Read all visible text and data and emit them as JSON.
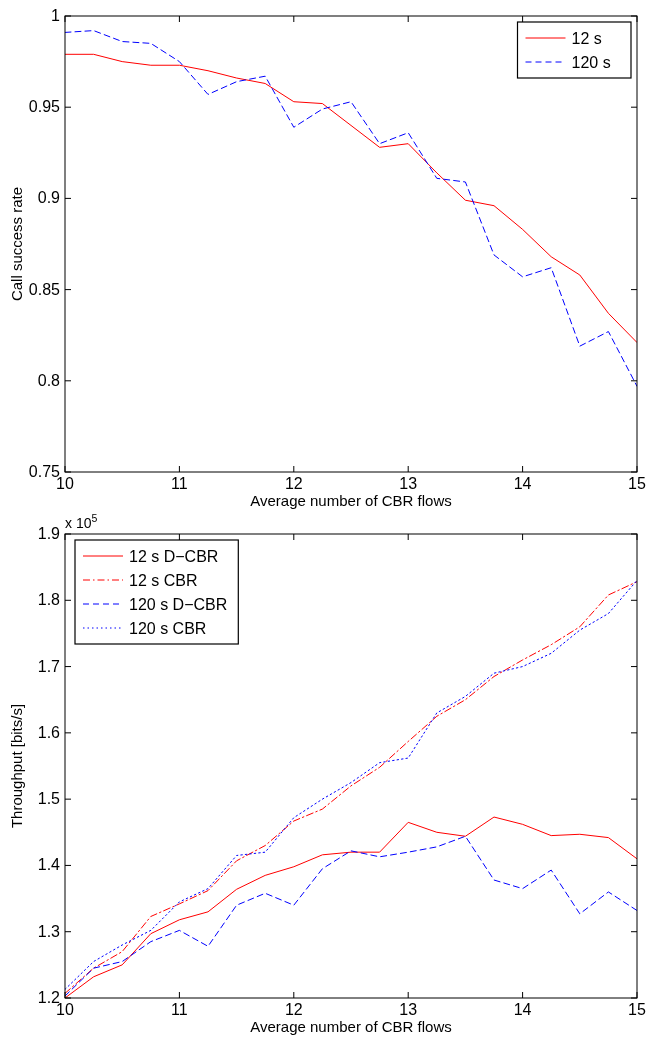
{
  "chart_data": [
    {
      "type": "line",
      "xlabel": "Average number of CBR flows",
      "ylabel": "Call success rate",
      "x": [
        10,
        10.25,
        10.5,
        10.75,
        11,
        11.25,
        11.5,
        11.75,
        12,
        12.25,
        12.5,
        12.75,
        13,
        13.25,
        13.5,
        13.75,
        14,
        14.25,
        14.5,
        14.75,
        15
      ],
      "xlim": [
        10,
        15
      ],
      "xticks": [
        10,
        11,
        12,
        13,
        14,
        15
      ],
      "ylim": [
        0.75,
        1
      ],
      "yticks": [
        0.75,
        0.8,
        0.85,
        0.9,
        0.95,
        1
      ],
      "grid": false,
      "legend": "top right",
      "series": [
        {
          "name": "12 s",
          "color": "#ff0000",
          "line_style": "solid",
          "values": [
            0.979,
            0.979,
            0.975,
            0.973,
            0.973,
            0.97,
            0.966,
            0.963,
            0.953,
            0.952,
            0.94,
            0.928,
            0.93,
            0.914,
            0.899,
            0.896,
            0.883,
            0.868,
            0.858,
            0.837,
            0.821
          ]
        },
        {
          "name": "120 s",
          "color": "#0000ff",
          "line_style": "dashed",
          "values": [
            0.991,
            0.992,
            0.986,
            0.985,
            0.975,
            0.957,
            0.964,
            0.967,
            0.939,
            0.949,
            0.953,
            0.93,
            0.936,
            0.911,
            0.909,
            0.869,
            0.857,
            0.862,
            0.819,
            0.827,
            0.797
          ]
        }
      ]
    },
    {
      "type": "line",
      "xlabel": "Average number of CBR flows",
      "ylabel": "Throughput [bits/s]",
      "annotations": [
        "x 10$^{5}$"
      ],
      "x": [
        10,
        10.25,
        10.5,
        10.75,
        11,
        11.25,
        11.5,
        11.75,
        12,
        12.25,
        12.5,
        12.75,
        13,
        13.25,
        13.5,
        13.75,
        14,
        14.25,
        14.5,
        14.75,
        15
      ],
      "xlim": [
        10,
        15
      ],
      "xticks": [
        10,
        11,
        12,
        13,
        14,
        15
      ],
      "ylim": [
        1.2,
        1.9
      ],
      "yticks": [
        1.2,
        1.3,
        1.4,
        1.5,
        1.6,
        1.7,
        1.8,
        1.9
      ],
      "grid": false,
      "legend": "top left",
      "series": [
        {
          "name": "12 s D−CBR",
          "color": "#ff0000",
          "line_style": "solid",
          "values": [
            1.2,
            1.232,
            1.25,
            1.297,
            1.318,
            1.33,
            1.364,
            1.385,
            1.398,
            1.416,
            1.42,
            1.42,
            1.465,
            1.45,
            1.444,
            1.473,
            1.462,
            1.445,
            1.447,
            1.442,
            1.41
          ]
        },
        {
          "name": "12 s CBR",
          "color": "#ff0000",
          "line_style": "dashdot",
          "values": [
            1.207,
            1.245,
            1.27,
            1.323,
            1.342,
            1.362,
            1.407,
            1.43,
            1.467,
            1.485,
            1.52,
            1.548,
            1.587,
            1.625,
            1.65,
            1.685,
            1.71,
            1.733,
            1.76,
            1.808,
            1.828
          ]
        },
        {
          "name": "120 s D−CBR",
          "color": "#0000ff",
          "line_style": "dashed",
          "values": [
            1.203,
            1.245,
            1.255,
            1.285,
            1.302,
            1.278,
            1.34,
            1.358,
            1.34,
            1.395,
            1.422,
            1.413,
            1.42,
            1.428,
            1.444,
            1.378,
            1.365,
            1.393,
            1.327,
            1.36,
            1.332
          ]
        },
        {
          "name": "120 s CBR",
          "color": "#0000ff",
          "line_style": "dotted",
          "values": [
            1.213,
            1.255,
            1.28,
            1.302,
            1.345,
            1.365,
            1.415,
            1.42,
            1.472,
            1.5,
            1.525,
            1.555,
            1.562,
            1.63,
            1.655,
            1.69,
            1.7,
            1.72,
            1.755,
            1.78,
            1.83
          ]
        }
      ]
    }
  ]
}
